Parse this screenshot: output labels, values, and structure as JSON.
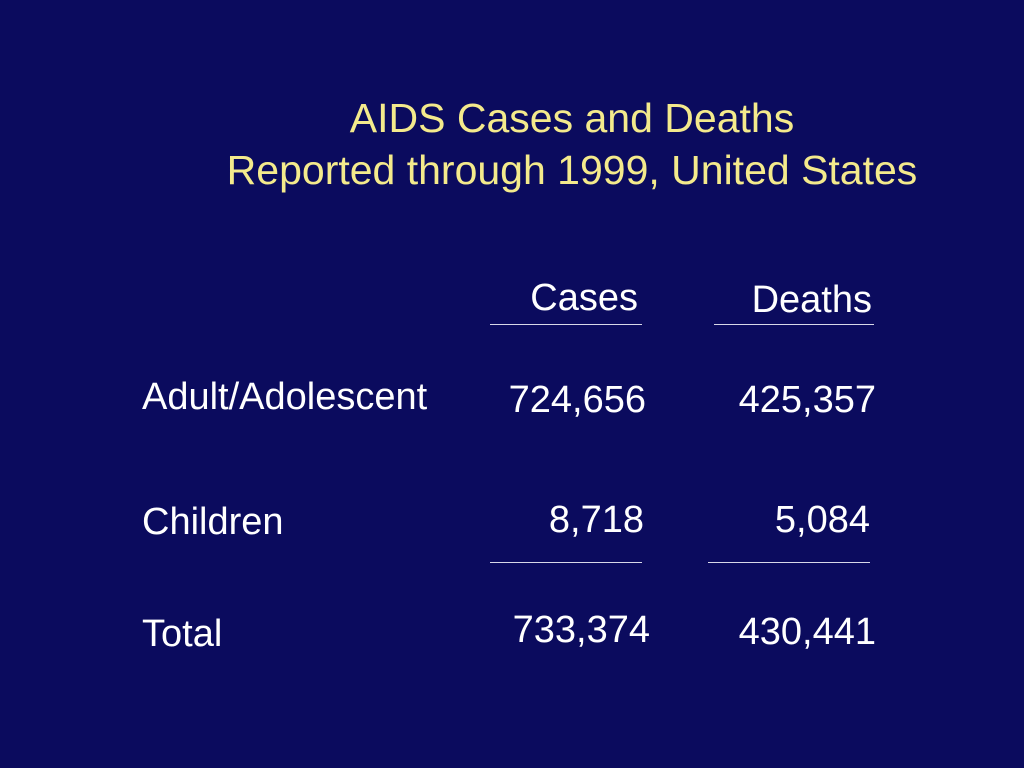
{
  "title": {
    "line1": "AIDS Cases and Deaths",
    "line2": "Reported through 1999, United States"
  },
  "table": {
    "headers": [
      "Cases",
      "Deaths"
    ],
    "rows": [
      {
        "label": "Adult/Adolescent",
        "cases": "724,656",
        "deaths": "425,357"
      },
      {
        "label": "Children",
        "cases": "8,718",
        "deaths": "5,084"
      },
      {
        "label": "Total",
        "cases": "733,374",
        "deaths": "430,441"
      }
    ]
  },
  "colors": {
    "background": "#0b0b5e",
    "title": "#f4ea8c",
    "text": "#ffffff"
  }
}
